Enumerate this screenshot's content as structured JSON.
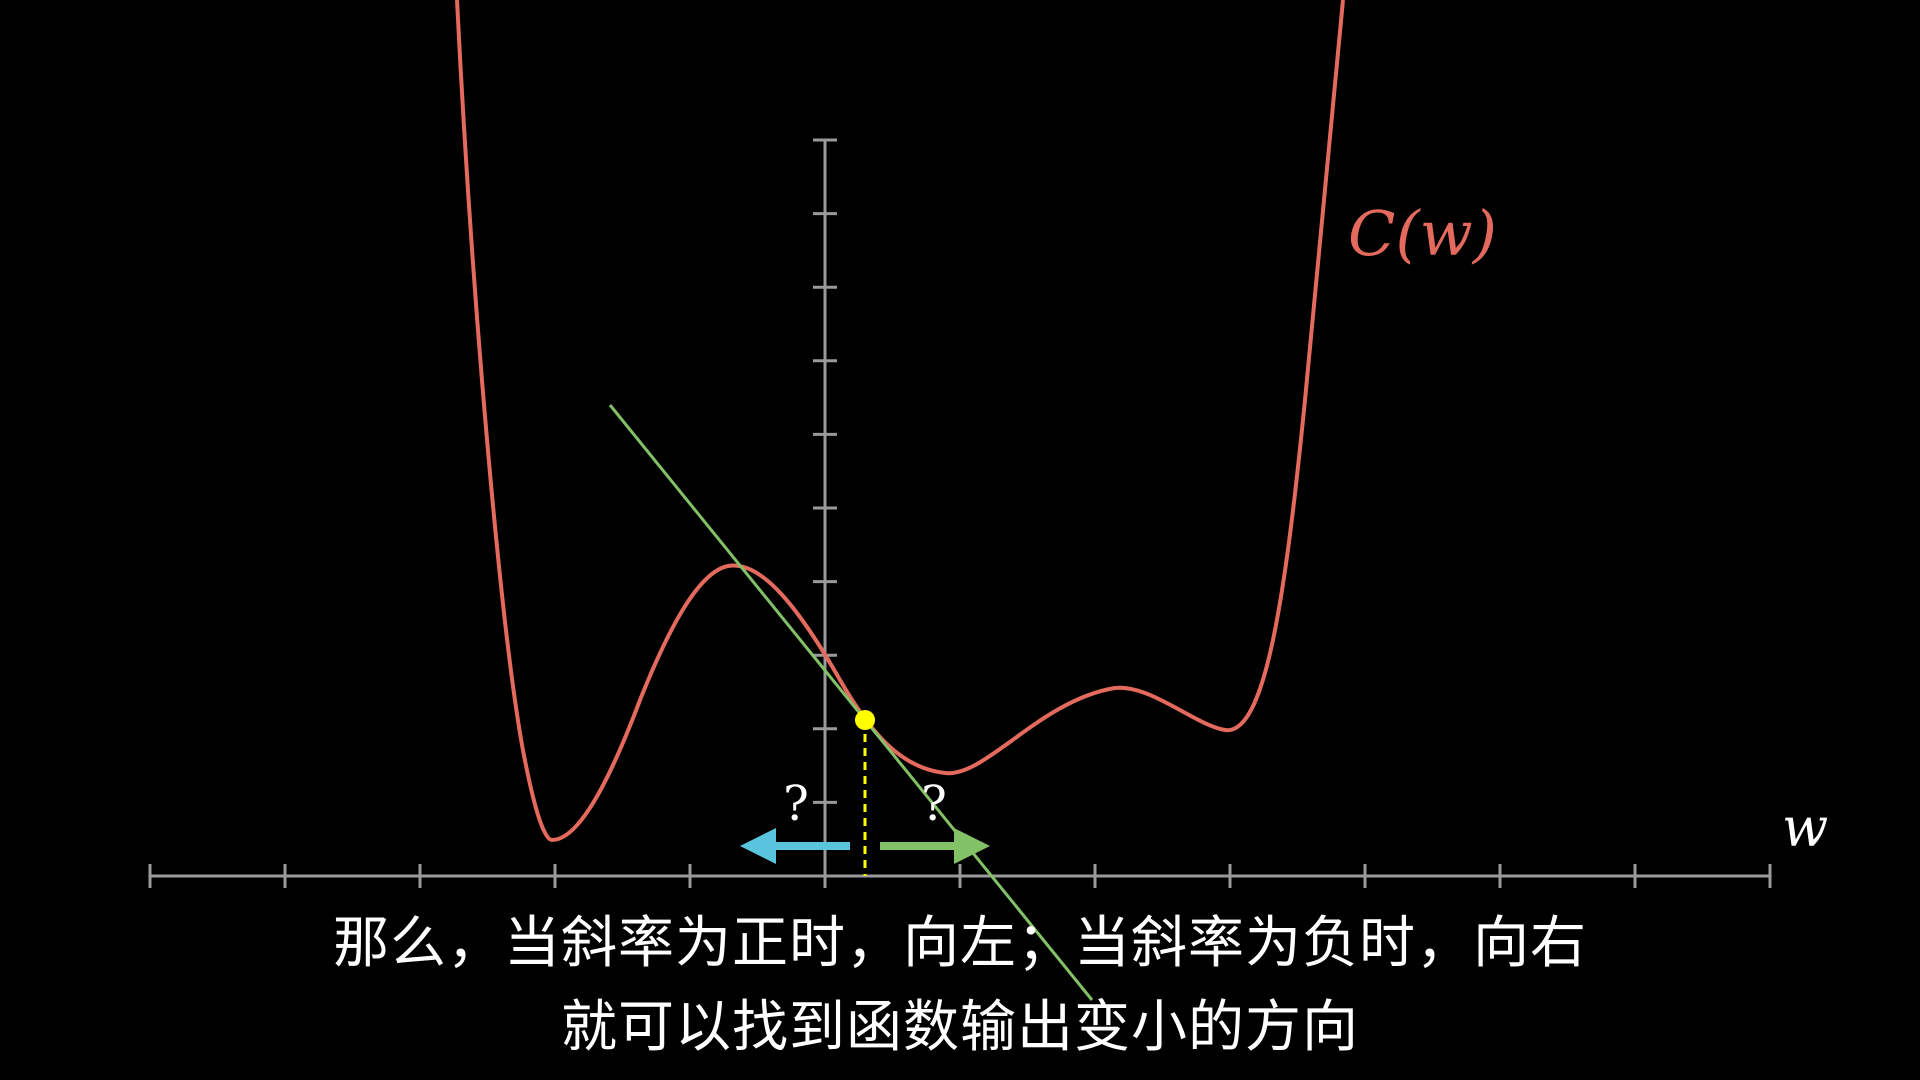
{
  "diagram": {
    "curve_label": "C(w)",
    "axis_label": "w",
    "question_left": "?",
    "question_right": "?",
    "colors": {
      "background": "#000000",
      "curve": "#e36a5c",
      "tangent": "#83c167",
      "point": "#ffff00",
      "arrow_left": "#58c4dd",
      "arrow_right": "#83c167",
      "axis": "#9a9a9a"
    }
  },
  "subtitles": {
    "line1": "那么，当斜率为正时，向左；当斜率为负时，向右",
    "line2": "就可以找到函数输出变小的方向"
  }
}
